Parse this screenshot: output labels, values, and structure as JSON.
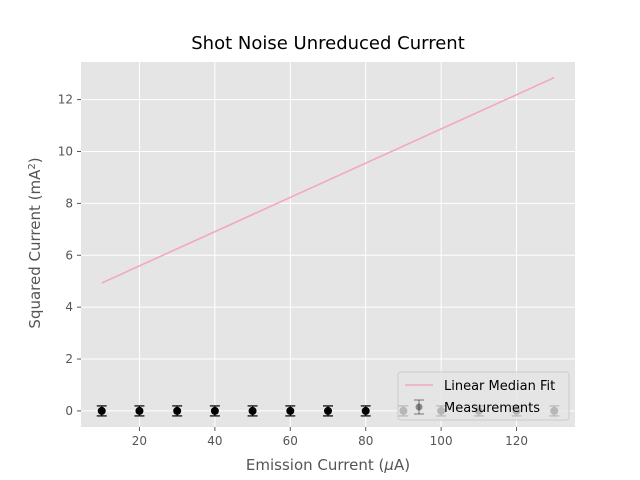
{
  "chart_data": {
    "type": "line",
    "title": "Shot Noise Unreduced Current",
    "xlabel": "Emission Current (μA)",
    "ylabel": "Squared Current (mA²)",
    "xlim": [
      4.5,
      135.5
    ],
    "ylim": [
      -0.62,
      13.45
    ],
    "xticks": [
      20,
      40,
      60,
      80,
      100,
      120
    ],
    "yticks": [
      0,
      2,
      4,
      6,
      8,
      10,
      12
    ],
    "grid": true,
    "legend_position": "lower-right",
    "series": [
      {
        "name": "Linear Median Fit",
        "kind": "line",
        "color": "#f4a6c8",
        "x": [
          10,
          130
        ],
        "y": [
          4.93,
          12.85
        ]
      },
      {
        "name": "Measurements",
        "kind": "errorbar",
        "color": "#000000",
        "x": [
          10,
          20,
          30,
          40,
          50,
          60,
          70,
          80,
          90,
          100,
          110,
          120,
          130
        ],
        "y": [
          0,
          0,
          0,
          0,
          0,
          0,
          0,
          0,
          0,
          0,
          0,
          0,
          0
        ]
      }
    ]
  }
}
